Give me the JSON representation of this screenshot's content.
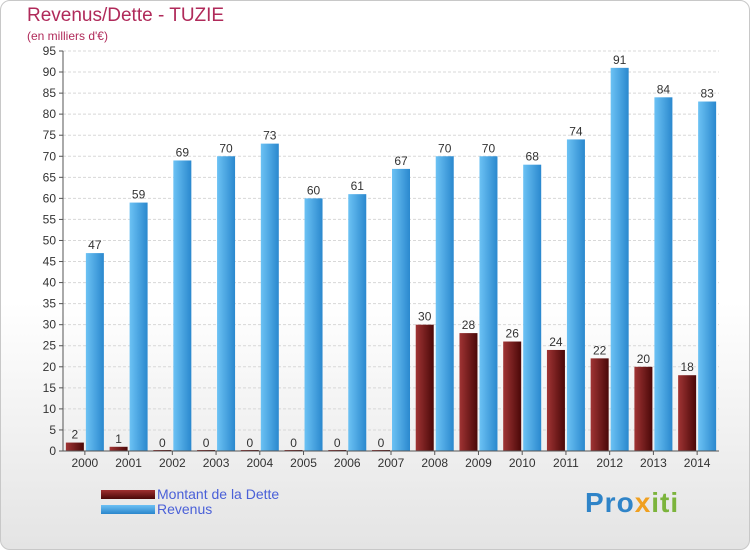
{
  "header": {
    "title": "Revenus/Dette - TUZIE",
    "subtitle": "(en milliers d'€)"
  },
  "colors": {
    "dette": "#6e1414",
    "revenus": "#3d9ce2",
    "title": "#b02a5a",
    "legend_text": "#4a60d8"
  },
  "chart_data": {
    "type": "bar",
    "title": "Revenus/Dette - TUZIE",
    "subtitle": "(en milliers d'€)",
    "categories": [
      "2000",
      "2001",
      "2002",
      "2003",
      "2004",
      "2005",
      "2006",
      "2007",
      "2008",
      "2009",
      "2010",
      "2011",
      "2012",
      "2013",
      "2014"
    ],
    "series": [
      {
        "name": "Montant de la Dette",
        "values": [
          2,
          1,
          0,
          0,
          0,
          0,
          0,
          0,
          30,
          28,
          26,
          24,
          22,
          20,
          18
        ]
      },
      {
        "name": "Revenus",
        "values": [
          47,
          59,
          69,
          70,
          73,
          60,
          61,
          67,
          70,
          70,
          68,
          74,
          91,
          84,
          83
        ]
      }
    ],
    "ylim": [
      0,
      95
    ],
    "yticks": [
      0,
      5,
      10,
      15,
      20,
      25,
      30,
      35,
      40,
      45,
      50,
      55,
      60,
      65,
      70,
      75,
      80,
      85,
      90,
      95
    ],
    "grid": true,
    "legend_position": "bottom-left"
  },
  "legend": {
    "items": [
      {
        "label": "Montant de la Dette"
      },
      {
        "label": "Revenus"
      }
    ]
  },
  "logo": {
    "part1": "Pro",
    "part2": "x",
    "part3": "iti"
  }
}
